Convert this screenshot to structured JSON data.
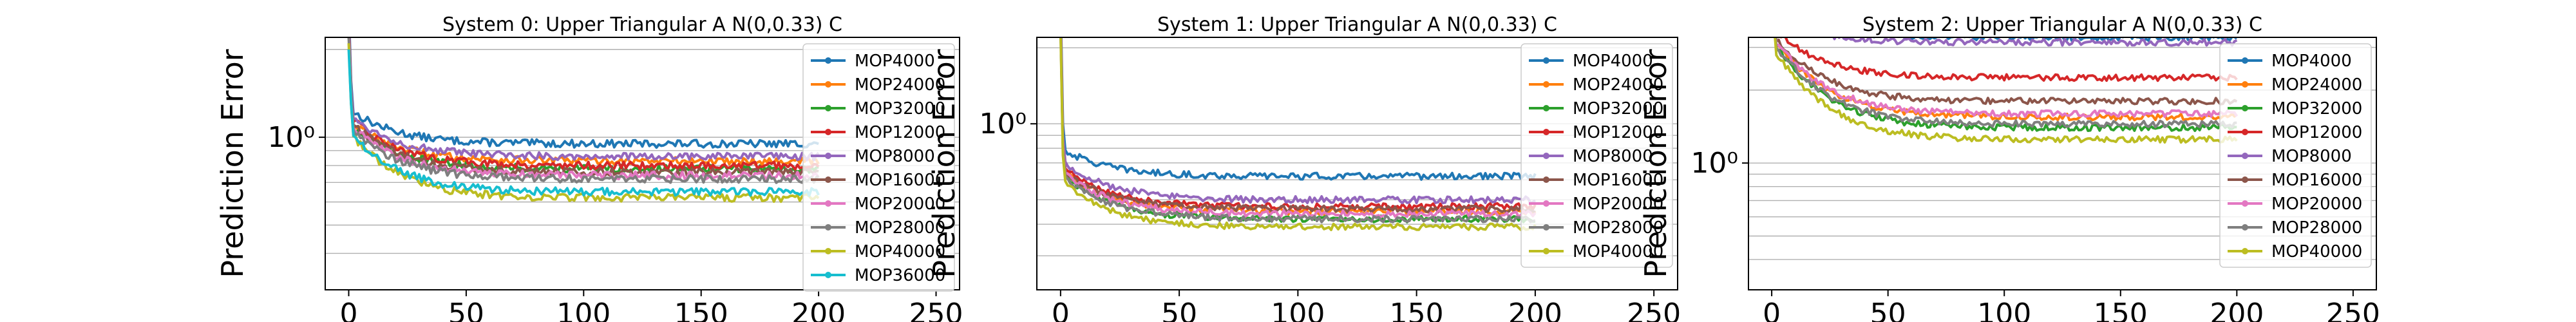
{
  "chart_data": [
    {
      "type": "line",
      "title": "System 0: Upper Triangular A N(0,0.33) C",
      "ylabel": "Prediction Error",
      "xlabel": "",
      "yscale": "log",
      "xlim": [
        -10,
        260
      ],
      "ylim": [
        0.3,
        2.2
      ],
      "x_ticks": [
        0,
        50,
        100,
        150,
        200,
        250
      ],
      "y_ticks": [
        {
          "value": 1.0,
          "label": "10⁰"
        }
      ],
      "grid": true,
      "legend_position": "right",
      "series": [
        {
          "name": "MOP4000",
          "color": "#1f77b4",
          "spike": 2.8,
          "start": 1.25,
          "plateau": 0.95
        },
        {
          "name": "MOP24000",
          "color": "#ff7f0e",
          "spike": 2.4,
          "start": 1.15,
          "plateau": 0.83
        },
        {
          "name": "MOP32000",
          "color": "#2ca02c",
          "spike": 2.3,
          "start": 1.12,
          "plateau": 0.78
        },
        {
          "name": "MOP12000",
          "color": "#d62728",
          "spike": 2.6,
          "start": 1.18,
          "plateau": 0.8
        },
        {
          "name": "MOP8000",
          "color": "#9467bd",
          "spike": 2.5,
          "start": 1.2,
          "plateau": 0.86
        },
        {
          "name": "MOP16000",
          "color": "#8c564b",
          "spike": 2.4,
          "start": 1.15,
          "plateau": 0.76
        },
        {
          "name": "MOP20000",
          "color": "#e377c2",
          "spike": 2.3,
          "start": 1.12,
          "plateau": 0.74
        },
        {
          "name": "MOP28000",
          "color": "#7f7f7f",
          "spike": 2.2,
          "start": 1.1,
          "plateau": 0.72
        },
        {
          "name": "MOP40000",
          "color": "#bcbd22",
          "spike": 2.1,
          "start": 1.05,
          "plateau": 0.62
        },
        {
          "name": "MOP36000",
          "color": "#17becf",
          "spike": 2.0,
          "start": 1.05,
          "plateau": 0.65
        }
      ]
    },
    {
      "type": "line",
      "title": "System 1: Upper Triangular A N(0,0.33) C",
      "ylabel": "Prediction Error",
      "xlabel": "",
      "yscale": "log",
      "xlim": [
        -10,
        260
      ],
      "ylim": [
        0.22,
        2.2
      ],
      "x_ticks": [
        0,
        50,
        100,
        150,
        200,
        250
      ],
      "y_ticks": [
        {
          "value": 1.0,
          "label": "10⁰"
        }
      ],
      "grid": true,
      "legend_position": "right",
      "series": [
        {
          "name": "MOP4000",
          "color": "#1f77b4",
          "spike": 3.0,
          "start": 0.8,
          "plateau": 0.62
        },
        {
          "name": "MOP24000",
          "color": "#ff7f0e",
          "spike": 2.6,
          "start": 0.66,
          "plateau": 0.45
        },
        {
          "name": "MOP32000",
          "color": "#2ca02c",
          "spike": 2.5,
          "start": 0.64,
          "plateau": 0.42
        },
        {
          "name": "MOP12000",
          "color": "#d62728",
          "spike": 2.7,
          "start": 0.68,
          "plateau": 0.47
        },
        {
          "name": "MOP8000",
          "color": "#9467bd",
          "spike": 2.8,
          "start": 0.72,
          "plateau": 0.5
        },
        {
          "name": "MOP16000",
          "color": "#8c564b",
          "spike": 2.6,
          "start": 0.66,
          "plateau": 0.46
        },
        {
          "name": "MOP20000",
          "color": "#e377c2",
          "spike": 2.5,
          "start": 0.65,
          "plateau": 0.44
        },
        {
          "name": "MOP28000",
          "color": "#7f7f7f",
          "spike": 2.4,
          "start": 0.63,
          "plateau": 0.42
        },
        {
          "name": "MOP40000",
          "color": "#bcbd22",
          "spike": 2.3,
          "start": 0.6,
          "plateau": 0.39
        }
      ]
    },
    {
      "type": "line",
      "title": "System 2: Upper Triangular A N(0,0.33) C",
      "ylabel": "Prediction Error",
      "xlabel": "",
      "yscale": "log",
      "xlim": [
        -10,
        260
      ],
      "ylim": [
        0.3,
        3.3
      ],
      "x_ticks": [
        0,
        50,
        100,
        150,
        200,
        250
      ],
      "y_ticks": [
        {
          "value": 1.0,
          "label": "10⁰"
        }
      ],
      "grid": true,
      "legend_position": "right",
      "series": [
        {
          "name": "MOP4000",
          "color": "#1f77b4",
          "spike": 4.0,
          "start": 4.5,
          "plateau": 3.3
        },
        {
          "name": "MOP24000",
          "color": "#ff7f0e",
          "spike": 3.5,
          "start": 3.3,
          "plateau": 1.55
        },
        {
          "name": "MOP32000",
          "color": "#2ca02c",
          "spike": 3.4,
          "start": 3.2,
          "plateau": 1.4
        },
        {
          "name": "MOP12000",
          "color": "#d62728",
          "spike": 3.8,
          "start": 3.6,
          "plateau": 2.25
        },
        {
          "name": "MOP8000",
          "color": "#9467bd",
          "spike": 4.0,
          "start": 4.0,
          "plateau": 3.15
        },
        {
          "name": "MOP16000",
          "color": "#8c564b",
          "spike": 3.6,
          "start": 3.4,
          "plateau": 1.8
        },
        {
          "name": "MOP20000",
          "color": "#e377c2",
          "spike": 3.5,
          "start": 3.3,
          "plateau": 1.6
        },
        {
          "name": "MOP28000",
          "color": "#7f7f7f",
          "spike": 3.4,
          "start": 3.2,
          "plateau": 1.45
        },
        {
          "name": "MOP40000",
          "color": "#bcbd22",
          "spike": 3.3,
          "start": 3.0,
          "plateau": 1.25
        }
      ]
    }
  ]
}
